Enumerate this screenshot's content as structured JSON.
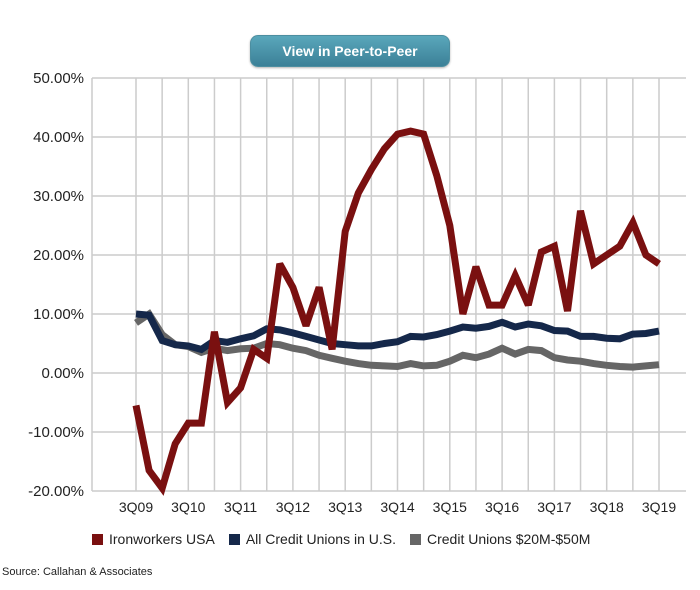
{
  "button": {
    "label": "View in Peer-to-Peer"
  },
  "source": "Source: Callahan & Associates",
  "colors": {
    "ironworkers": "#7a1010",
    "all_cu": "#15284a",
    "cu_20_50": "#666666",
    "grid": "#cccccc"
  },
  "chart_data": {
    "type": "line",
    "ylim": [
      -20,
      50
    ],
    "yticks": [
      "50.00%",
      "40.00%",
      "30.00%",
      "20.00%",
      "10.00%",
      "0.00%",
      "-10.00%",
      "-20.00%"
    ],
    "ytick_values": [
      50,
      40,
      30,
      20,
      10,
      0,
      -10,
      -20
    ],
    "x_labels": [
      "3Q09",
      "3Q10",
      "3Q11",
      "3Q12",
      "3Q13",
      "3Q14",
      "3Q15",
      "3Q16",
      "3Q17",
      "3Q18",
      "3Q19"
    ],
    "grid": true,
    "legend": "bottom",
    "series": [
      {
        "name": "Ironworkers USA",
        "color": "#7a1010",
        "values": [
          -5.5,
          -16.5,
          -19.5,
          -12,
          -8.5,
          -8.5,
          7,
          -5,
          -2.5,
          4,
          2.5,
          18.5,
          14.5,
          8,
          14.5,
          4,
          24,
          30.5,
          34.5,
          38,
          40.5,
          41,
          40.5,
          33.5,
          25,
          10,
          18,
          11.5,
          11.5,
          16.5,
          11.5,
          20.5,
          21.5,
          10.5,
          27.5,
          18.5,
          20,
          21.5,
          25.5,
          20,
          18.5
        ]
      },
      {
        "name": "All Credit Unions in U.S.",
        "color": "#15284a",
        "values": [
          10,
          9.8,
          5.5,
          4.8,
          4.6,
          4,
          5.5,
          5.2,
          5.8,
          6.3,
          7.5,
          7.3,
          6.8,
          6.2,
          5.6,
          5,
          4.8,
          4.6,
          4.6,
          5,
          5.3,
          6.2,
          6.1,
          6.5,
          7.1,
          7.8,
          7.6,
          7.9,
          8.6,
          7.8,
          8.3,
          8,
          7.2,
          7.1,
          6.2,
          6.2,
          5.9,
          5.8,
          6.6,
          6.7,
          7.1
        ]
      },
      {
        "name": "Credit Unions $20M-$50M",
        "color": "#666666",
        "values": [
          8.5,
          10,
          6.5,
          4.8,
          4.5,
          3.5,
          4.2,
          3.8,
          4.1,
          4.2,
          5,
          4.8,
          4.2,
          3.8,
          3,
          2.5,
          2,
          1.6,
          1.3,
          1.2,
          1.1,
          1.6,
          1.2,
          1.3,
          2,
          3,
          2.6,
          3.2,
          4.2,
          3.2,
          4,
          3.8,
          2.6,
          2.2,
          2,
          1.6,
          1.3,
          1.1,
          1,
          1.2,
          1.4
        ]
      }
    ]
  }
}
